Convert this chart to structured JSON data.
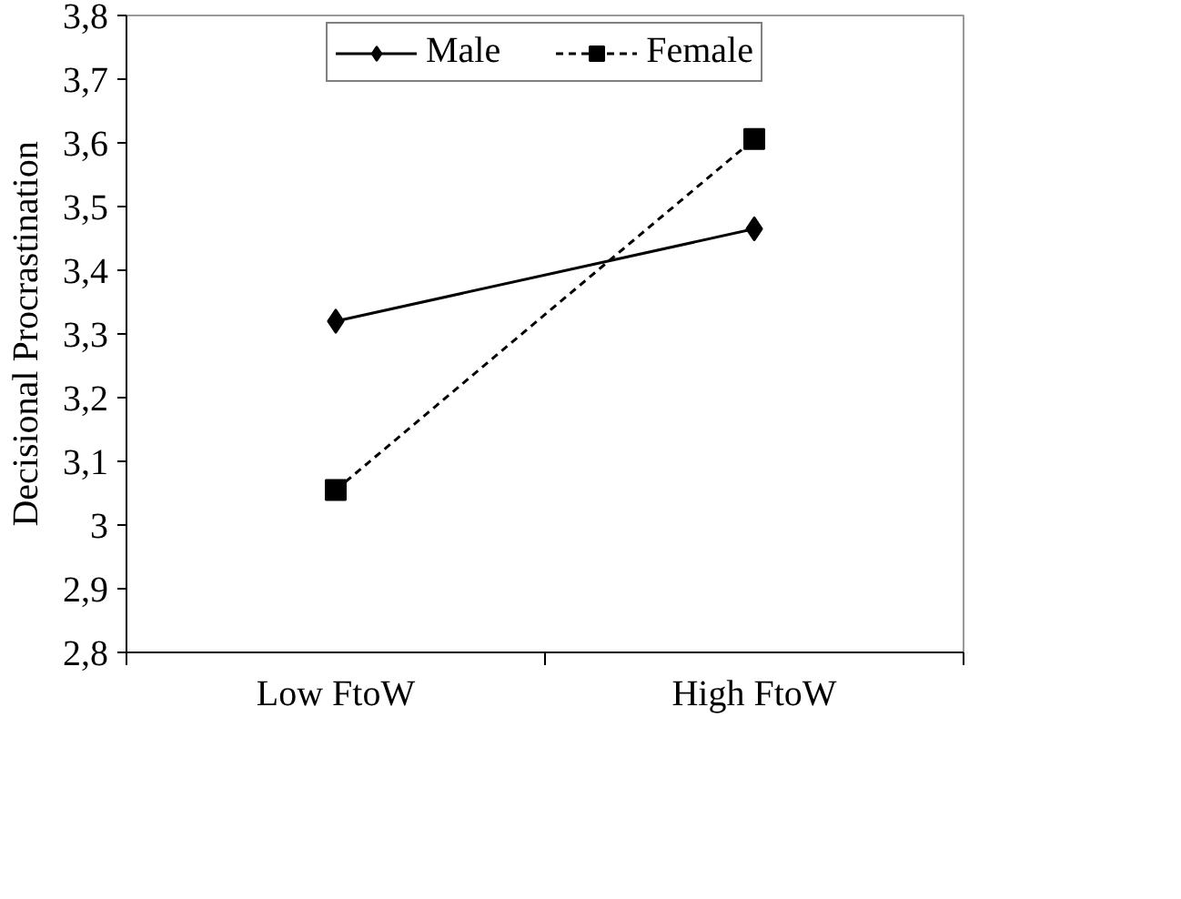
{
  "chart_data": {
    "type": "line",
    "ylabel": "Decisional Procrastination",
    "categories": [
      "Low FtoW",
      "High FtoW"
    ],
    "series": [
      {
        "name": "Male",
        "color": "#000000",
        "values": [
          3.32,
          3.465
        ],
        "marker": "diamond",
        "line_style": "solid"
      },
      {
        "name": "Female",
        "color": "#000000",
        "values": [
          3.055,
          3.606
        ],
        "marker": "square",
        "line_style": "dashed"
      }
    ],
    "ylim": [
      2.8,
      3.8
    ],
    "yticks": [
      {
        "value": 2.8,
        "label": "2,8"
      },
      {
        "value": 2.9,
        "label": "2,9"
      },
      3,
      {
        "value": 3.1,
        "label": "3,1"
      },
      {
        "value": 3.2,
        "label": "3,2"
      },
      {
        "value": 3.3,
        "label": "3,3"
      },
      {
        "value": 3.4,
        "label": "3,4"
      },
      {
        "value": 3.5,
        "label": "3,5"
      },
      {
        "value": 3.6,
        "label": "3,6"
      },
      {
        "value": 3.7,
        "label": "3,7"
      },
      {
        "value": 3.8,
        "label": "3,8"
      }
    ],
    "grid": false,
    "legend": "top"
  }
}
